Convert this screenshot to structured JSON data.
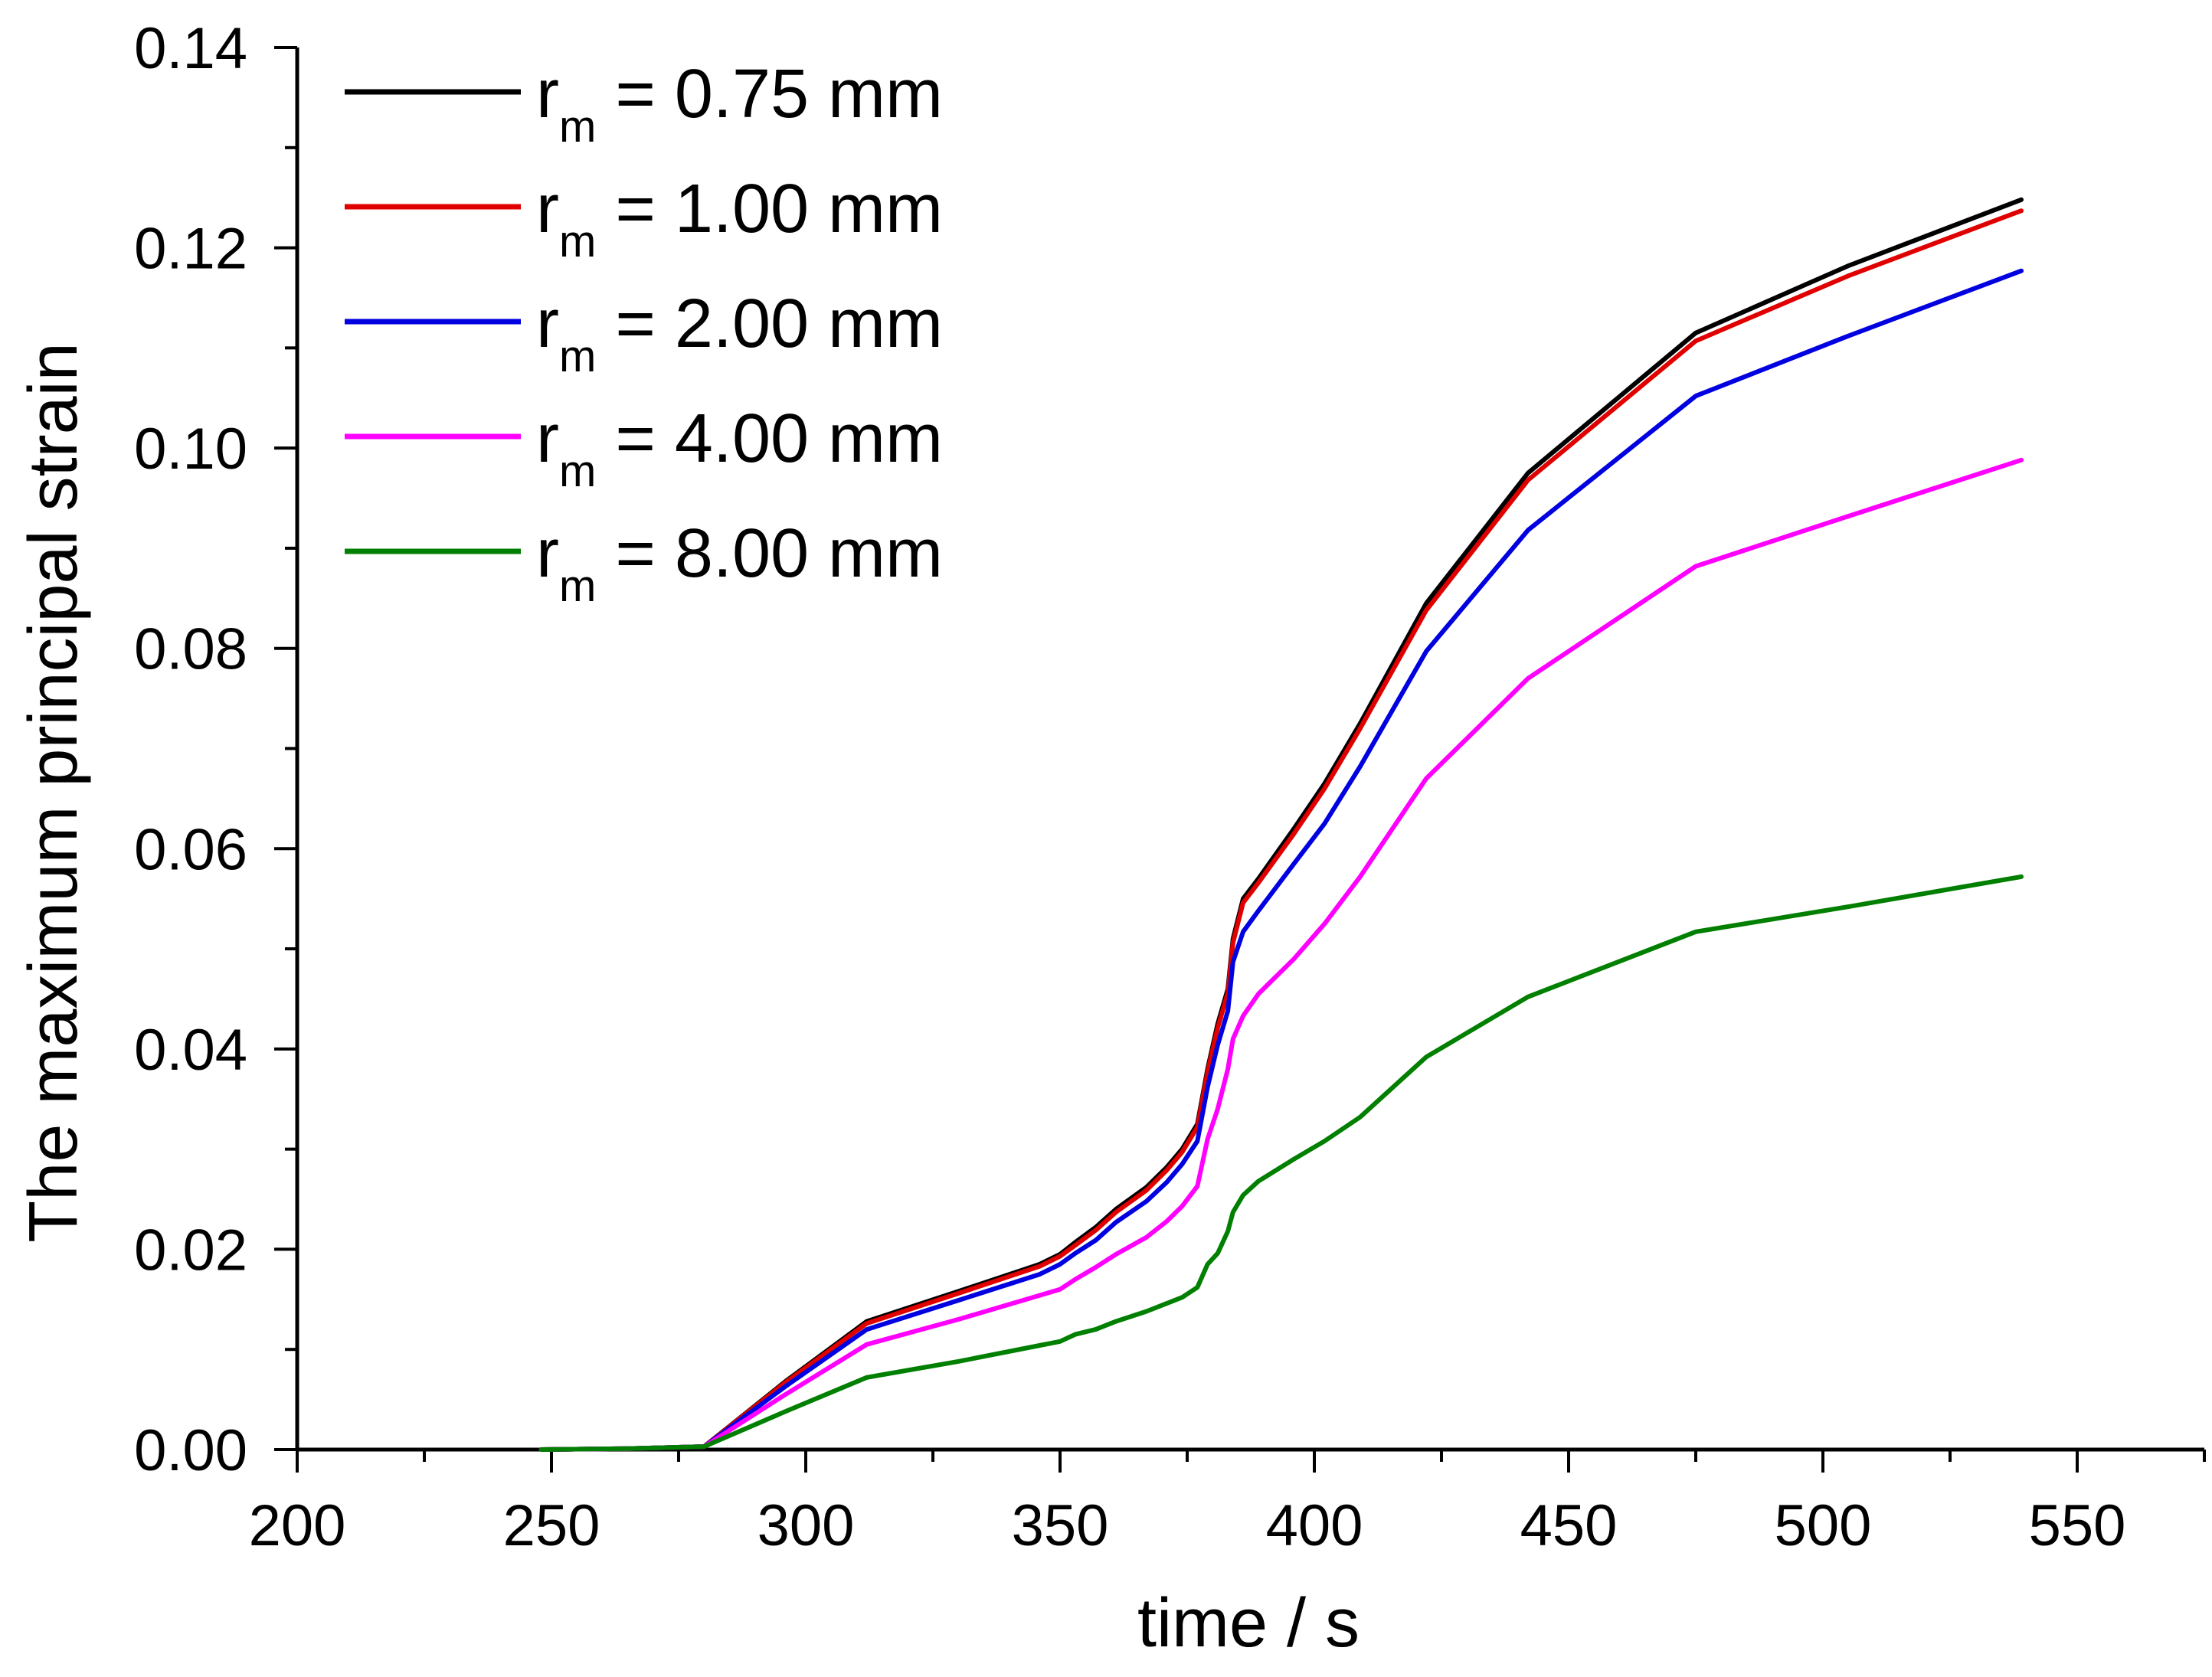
{
  "chart_data": {
    "type": "line",
    "title": "",
    "xlabel": "time / s",
    "ylabel": "The maximum principal strain",
    "xlim": [
      200,
      575
    ],
    "ylim": [
      0,
      0.14
    ],
    "x_ticks": [
      "200",
      "250",
      "300",
      "350",
      "400",
      "450",
      "500",
      "550"
    ],
    "y_ticks": [
      "0.00",
      "0.02",
      "0.04",
      "0.06",
      "0.08",
      "0.10",
      "0.12",
      "0.14"
    ],
    "grid": false,
    "legend_position": "top-left",
    "series": [
      {
        "name": "r = 0.75 mm",
        "base": "r",
        "sub": "m",
        "rest": " = 0.75 mm",
        "color": "#000000",
        "x": [
          248,
          265,
          280,
          296,
          312,
          330,
          346,
          350,
          353,
          357,
          361,
          367,
          371,
          374,
          377,
          379,
          381,
          383,
          384,
          386,
          389,
          396,
          402,
          409,
          422,
          442,
          475,
          505,
          539
        ],
        "y": [
          0,
          0.0001,
          0.0003,
          0.0068,
          0.0128,
          0.0158,
          0.0185,
          0.0195,
          0.0207,
          0.0222,
          0.024,
          0.0262,
          0.0282,
          0.03,
          0.0325,
          0.038,
          0.0425,
          0.046,
          0.051,
          0.055,
          0.057,
          0.062,
          0.0665,
          0.0725,
          0.0845,
          0.0975,
          0.1115,
          0.1182,
          0.1248
        ]
      },
      {
        "name": "r = 1.00 mm",
        "base": "r",
        "sub": "m",
        "rest": " = 1.00 mm",
        "color": "#e00000",
        "x": [
          248,
          265,
          280,
          296,
          312,
          330,
          346,
          350,
          353,
          357,
          361,
          367,
          371,
          374,
          377,
          379,
          381,
          383,
          384,
          386,
          389,
          396,
          402,
          409,
          422,
          442,
          475,
          505,
          539
        ],
        "y": [
          0,
          0.0001,
          0.0003,
          0.0067,
          0.0126,
          0.0156,
          0.0183,
          0.0193,
          0.0204,
          0.0219,
          0.0237,
          0.0259,
          0.0279,
          0.0297,
          0.0322,
          0.0377,
          0.0421,
          0.0456,
          0.0506,
          0.0546,
          0.0566,
          0.0615,
          0.066,
          0.072,
          0.0838,
          0.0968,
          0.1107,
          0.1172,
          0.1237
        ]
      },
      {
        "name": "r = 2.00 mm",
        "base": "r",
        "sub": "m",
        "rest": " = 2.00 mm",
        "color": "#0000e0",
        "x": [
          248,
          265,
          280,
          296,
          312,
          330,
          346,
          350,
          353,
          357,
          361,
          367,
          371,
          374,
          377,
          379,
          381,
          383,
          384,
          386,
          389,
          396,
          402,
          409,
          422,
          442,
          475,
          505,
          539
        ],
        "y": [
          0,
          0.0001,
          0.0003,
          0.0063,
          0.012,
          0.0149,
          0.0175,
          0.0185,
          0.0196,
          0.0209,
          0.0227,
          0.0248,
          0.0267,
          0.0285,
          0.0308,
          0.0362,
          0.0404,
          0.0438,
          0.0487,
          0.0517,
          0.0538,
          0.0585,
          0.0625,
          0.0682,
          0.0797,
          0.0918,
          0.1052,
          0.1112,
          0.1177
        ]
      },
      {
        "name": "r = 4.00 mm",
        "base": "r",
        "sub": "m",
        "rest": " = 4.00 mm",
        "color": "#ff00ff",
        "x": [
          248,
          265,
          280,
          296,
          312,
          330,
          346,
          350,
          353,
          357,
          361,
          367,
          371,
          374,
          377,
          379,
          381,
          383,
          384,
          386,
          389,
          396,
          402,
          409,
          422,
          442,
          475,
          505,
          539
        ],
        "y": [
          0,
          0.0001,
          0.0003,
          0.0055,
          0.0105,
          0.013,
          0.0154,
          0.016,
          0.017,
          0.0182,
          0.0195,
          0.0212,
          0.0228,
          0.0243,
          0.0263,
          0.031,
          0.034,
          0.038,
          0.041,
          0.0433,
          0.0455,
          0.049,
          0.0525,
          0.0572,
          0.067,
          0.077,
          0.0882,
          0.0932,
          0.0988
        ]
      },
      {
        "name": "r = 8.00 mm",
        "base": "r",
        "sub": "m",
        "rest": " = 8.00 mm",
        "color": "#007f00",
        "x": [
          248,
          265,
          280,
          296,
          312,
          330,
          346,
          350,
          353,
          357,
          361,
          367,
          371,
          374,
          377,
          379,
          381,
          383,
          384,
          386,
          389,
          396,
          402,
          409,
          422,
          442,
          475,
          505,
          539
        ],
        "y": [
          0,
          0.0001,
          0.0003,
          0.0038,
          0.0072,
          0.0088,
          0.0104,
          0.0108,
          0.0115,
          0.012,
          0.0128,
          0.0138,
          0.0146,
          0.0152,
          0.0162,
          0.0185,
          0.0196,
          0.0218,
          0.0237,
          0.0254,
          0.0268,
          0.029,
          0.0308,
          0.0332,
          0.0392,
          0.0452,
          0.0517,
          0.0542,
          0.0572
        ]
      }
    ]
  }
}
